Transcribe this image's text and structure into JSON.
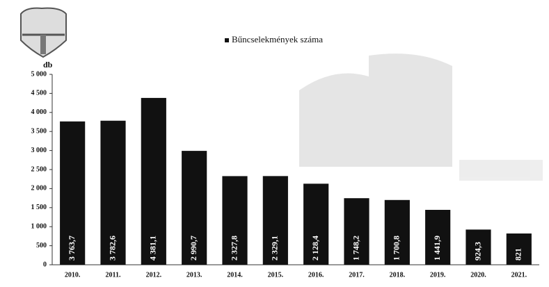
{
  "chart_data": {
    "type": "bar",
    "legend": "Bűncselekmények száma",
    "y_label": "db",
    "categories": [
      "2010.",
      "2011.",
      "2012.",
      "2013.",
      "2014.",
      "2015.",
      "2016.",
      "2017.",
      "2018.",
      "2019.",
      "2020.",
      "2021."
    ],
    "values": [
      3763.7,
      3782.6,
      4381.1,
      2990.7,
      2327.8,
      2329.1,
      2128.4,
      1748.2,
      1700.8,
      1441.9,
      924.3,
      821
    ],
    "value_labels": [
      "3 763,7",
      "3 782,6",
      "4 381,1",
      "2 990,7",
      "2 327,8",
      "2 329,1",
      "2 128,4",
      "1 748,2",
      "1 700,8",
      "1 441,9",
      "924,3",
      "821"
    ],
    "color": "#111111",
    "ylim": [
      0,
      5000
    ],
    "yticks": [
      0,
      500,
      {
        "value": 1000,
        "label": "1 000"
      },
      {
        "value": 1500,
        "label": "1 500"
      },
      {
        "value": 2000,
        "label": "2 000"
      },
      {
        "value": 2500,
        "label": "2 500"
      },
      {
        "value": 3000,
        "label": "3 000"
      },
      {
        "value": 3500,
        "label": "3 500"
      },
      {
        "value": 4000,
        "label": "4 000"
      },
      {
        "value": 4500,
        "label": "4 500"
      },
      {
        "value": 5000,
        "label": "5 000"
      }
    ]
  }
}
